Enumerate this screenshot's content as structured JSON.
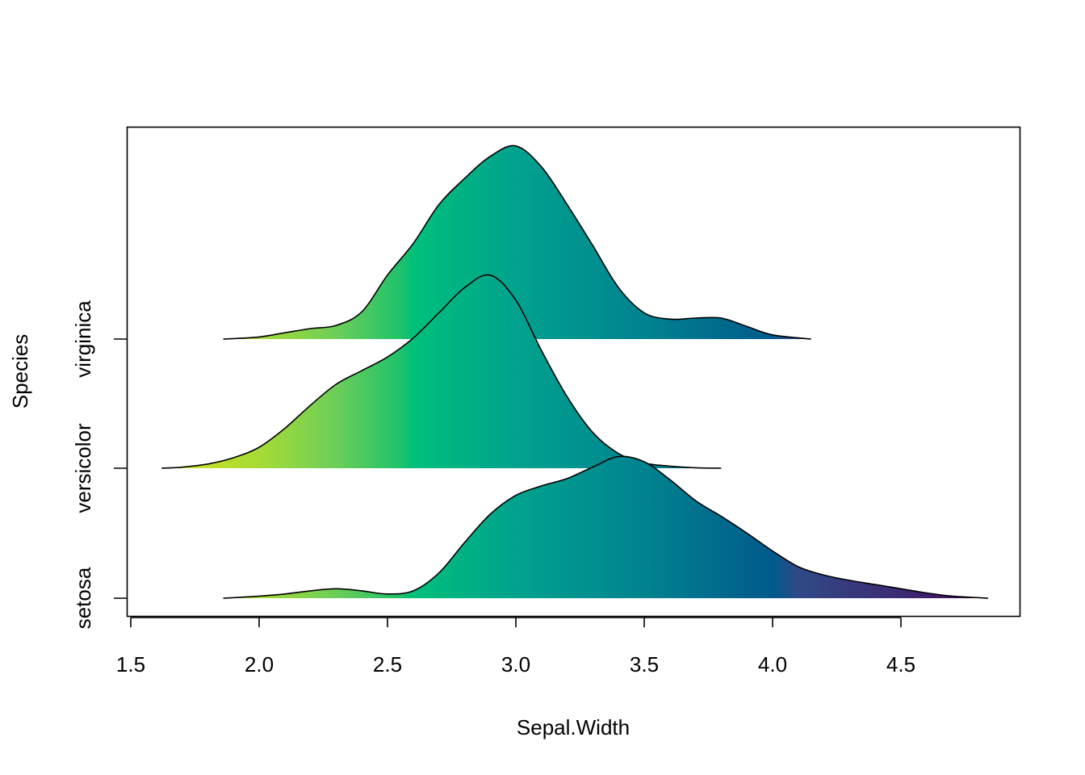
{
  "chart_data": {
    "type": "ridgeline",
    "xlabel": "Sepal.Width",
    "ylabel": "Species",
    "xlim": [
      1.5,
      4.85
    ],
    "xticks": [
      "1.5",
      "2.0",
      "2.5",
      "3.0",
      "3.5",
      "4.0",
      "4.5"
    ],
    "categories": [
      "setosa",
      "versicolor",
      "virginica"
    ],
    "fill": "viridis gradient along x (yellow-green at low Sepal.Width to dark purple at high Sepal.Width)",
    "colorscale": [
      [
        1.6,
        "#d7e21a"
      ],
      [
        2.0,
        "#a6db35"
      ],
      [
        2.3,
        "#6cce59"
      ],
      [
        2.55,
        "#1fc26b"
      ],
      [
        2.6,
        "#00c07a"
      ],
      [
        3.0,
        "#00a28e"
      ],
      [
        3.5,
        "#00838f"
      ],
      [
        4.0,
        "#005a8c"
      ],
      [
        4.1,
        "#2f4a86"
      ],
      [
        4.5,
        "#3d2a73"
      ],
      [
        4.85,
        "#440154"
      ]
    ],
    "series": [
      {
        "name": "setosa",
        "x": [
          1.86,
          2.0,
          2.1,
          2.2,
          2.3,
          2.4,
          2.5,
          2.6,
          2.7,
          2.8,
          2.9,
          3.0,
          3.1,
          3.2,
          3.3,
          3.4,
          3.5,
          3.6,
          3.7,
          3.8,
          3.9,
          4.0,
          4.1,
          4.2,
          4.3,
          4.4,
          4.5,
          4.6,
          4.7,
          4.84
        ],
        "density": [
          0.0,
          0.02,
          0.04,
          0.07,
          0.09,
          0.07,
          0.04,
          0.07,
          0.24,
          0.53,
          0.8,
          0.98,
          1.07,
          1.14,
          1.25,
          1.35,
          1.3,
          1.13,
          0.93,
          0.78,
          0.62,
          0.45,
          0.3,
          0.22,
          0.17,
          0.13,
          0.09,
          0.05,
          0.02,
          0.0
        ]
      },
      {
        "name": "versicolor",
        "x": [
          1.62,
          1.7,
          1.8,
          1.9,
          2.0,
          2.1,
          2.2,
          2.3,
          2.4,
          2.5,
          2.6,
          2.7,
          2.8,
          2.9,
          3.0,
          3.1,
          3.2,
          3.3,
          3.4,
          3.5,
          3.6,
          3.7,
          3.8
        ],
        "density": [
          0.0,
          0.01,
          0.04,
          0.1,
          0.2,
          0.38,
          0.6,
          0.8,
          0.93,
          1.06,
          1.24,
          1.48,
          1.72,
          1.84,
          1.6,
          1.12,
          0.68,
          0.34,
          0.14,
          0.05,
          0.02,
          0.005,
          0.0
        ]
      },
      {
        "name": "virginica",
        "x": [
          1.86,
          2.0,
          2.1,
          2.2,
          2.3,
          2.4,
          2.5,
          2.6,
          2.7,
          2.8,
          2.9,
          3.0,
          3.1,
          3.2,
          3.3,
          3.4,
          3.5,
          3.6,
          3.7,
          3.8,
          3.9,
          4.0,
          4.15
        ],
        "density": [
          0.0,
          0.02,
          0.06,
          0.1,
          0.13,
          0.26,
          0.61,
          0.91,
          1.28,
          1.53,
          1.74,
          1.84,
          1.64,
          1.28,
          0.89,
          0.49,
          0.25,
          0.19,
          0.2,
          0.2,
          0.12,
          0.04,
          0.0
        ]
      }
    ]
  }
}
